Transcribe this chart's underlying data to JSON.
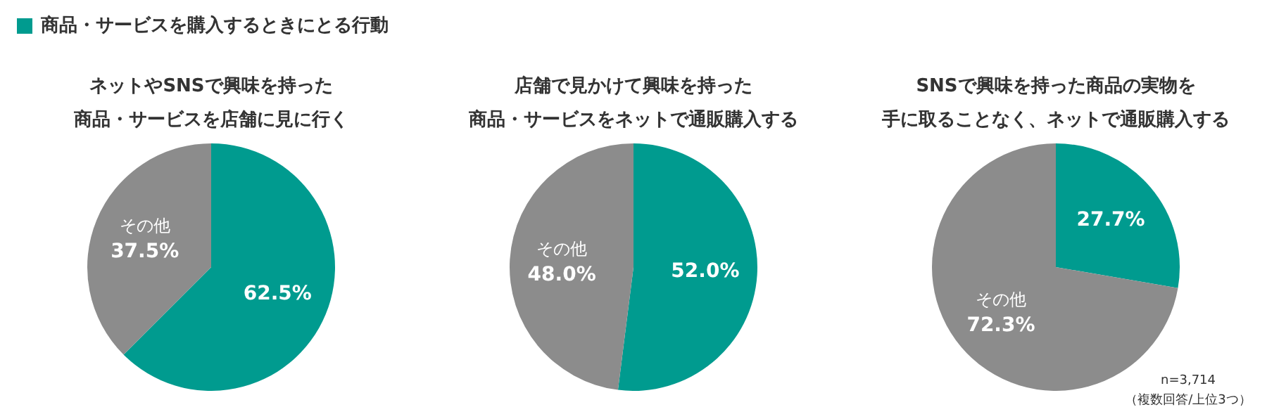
{
  "chart_data": [
    {
      "type": "pie",
      "title": "ネットやSNSで興味を持った",
      "subtitle": "商品・サービスを店舗に見に行く",
      "annotations": [
        "商品・サービスを購入するときにとる行動"
      ],
      "categories": [
        null,
        "その他"
      ],
      "values": [
        62.5,
        37.5
      ],
      "colors": [
        "#009b8f",
        "#8c8c8c"
      ],
      "value_labels": [
        "62.5%",
        "37.5%"
      ]
    },
    {
      "type": "pie",
      "title": "店舗で見かけて興味を持った",
      "subtitle": "商品・サービスをネットで通販購入する",
      "categories": [
        null,
        "その他"
      ],
      "values": [
        52.0,
        48.0
      ],
      "colors": [
        "#009b8f",
        "#8c8c8c"
      ],
      "value_labels": [
        "52.0%",
        "48.0%"
      ]
    },
    {
      "type": "pie",
      "title": "SNSで興味を持った商品の実物を",
      "subtitle": "手に取ることなく、ネットで通販購入する",
      "annotations": [
        "n=3,714",
        "（複数回答/上位3つ）"
      ],
      "categories": [
        null,
        "その他"
      ],
      "values": [
        27.7,
        72.3
      ],
      "colors": [
        "#009b8f",
        "#8c8c8c"
      ],
      "value_labels": [
        "27.7%",
        "72.3%"
      ]
    }
  ]
}
